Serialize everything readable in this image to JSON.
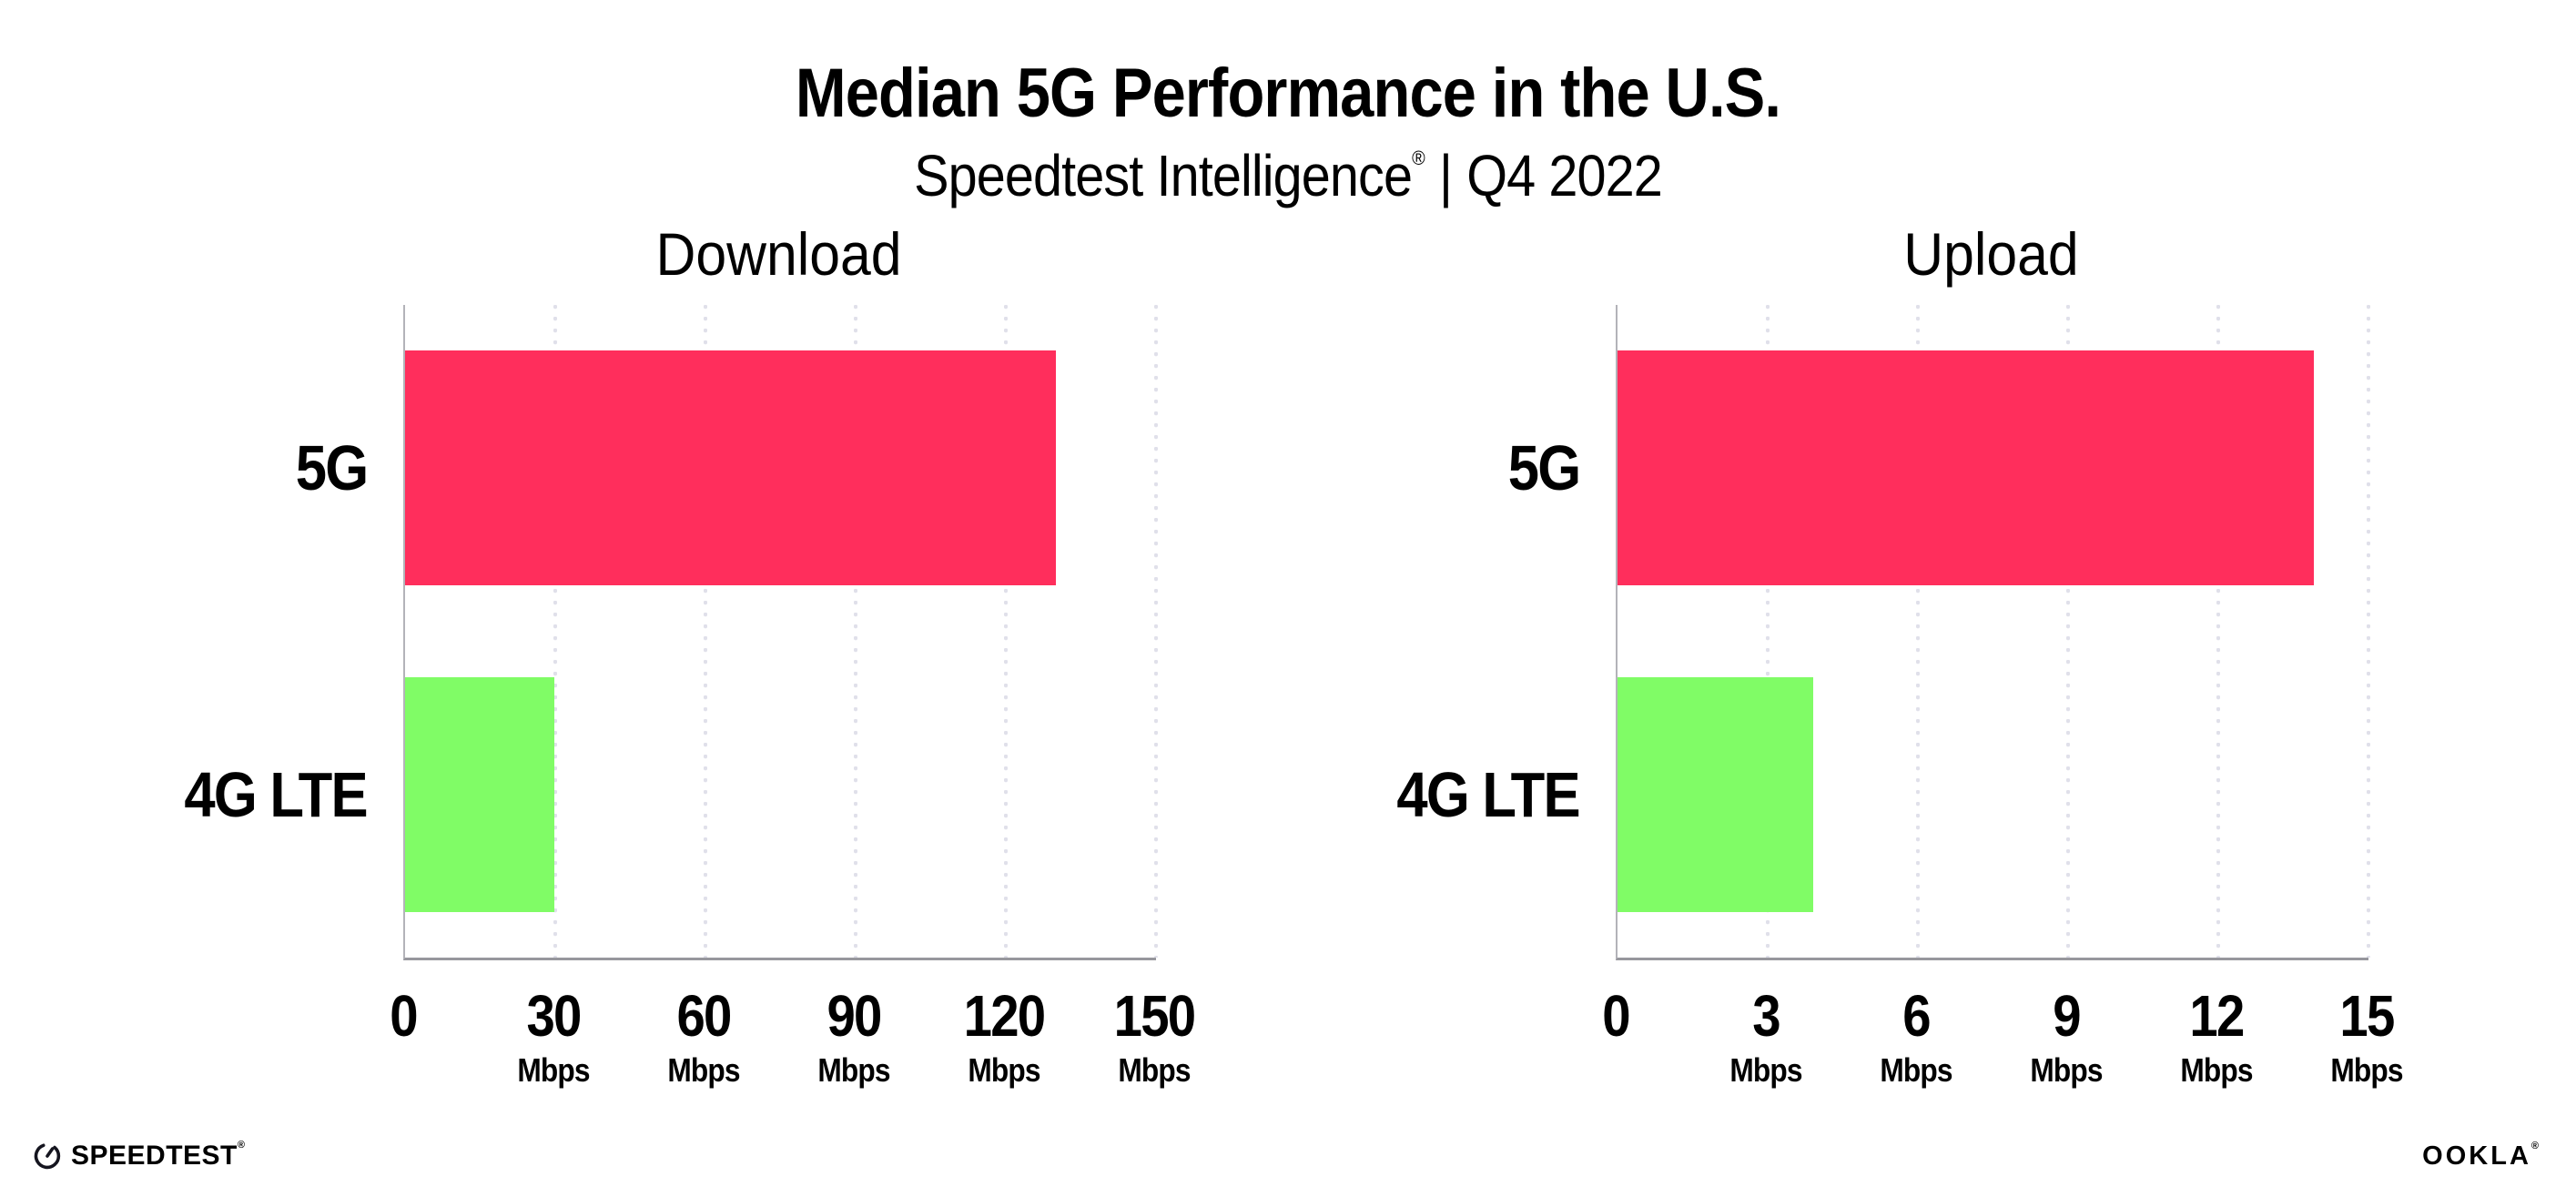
{
  "title": "Median 5G Performance in the U.S.",
  "subtitle": {
    "product": "Speedtest Intelligence",
    "trademark": "®",
    "separator": "|",
    "period": "Q4 2022"
  },
  "colors": {
    "bar_5g": "#FF2E5C",
    "bar_4g_lte": "#80FC66",
    "grid_dot": "#E0E0EA",
    "x_axis_line": "#97979D",
    "y_axis_line": "#B3B3B9",
    "text": "#000000",
    "background": "#FFFFFF"
  },
  "chart_data": [
    {
      "type": "bar",
      "orientation": "horizontal",
      "title": "Download",
      "categories": [
        "5G",
        "4G LTE"
      ],
      "values": [
        130,
        29.9
      ],
      "bar_colors": [
        "#FF2E5C",
        "#80FC66"
      ],
      "unit": "Mbps",
      "xlim": [
        0,
        150
      ],
      "xticks": [
        0,
        30,
        60,
        90,
        120,
        150
      ],
      "tick_unit_label": "Mbps",
      "grid": "dotted-vertical-at-ticks",
      "legend": "none"
    },
    {
      "type": "bar",
      "orientation": "horizontal",
      "title": "Upload",
      "categories": [
        "5G",
        "4G LTE"
      ],
      "values": [
        13.9,
        3.9
      ],
      "bar_colors": [
        "#FF2E5C",
        "#80FC66"
      ],
      "unit": "Mbps",
      "xlim": [
        0,
        15
      ],
      "xticks": [
        0,
        3,
        6,
        9,
        12,
        15
      ],
      "tick_unit_label": "Mbps",
      "grid": "dotted-vertical-at-ticks",
      "legend": "none"
    }
  ],
  "footer": {
    "speedtest_label": "SPEEDTEST",
    "speedtest_trademark": "®",
    "ookla_label": "OOKLA",
    "ookla_trademark": "®"
  }
}
